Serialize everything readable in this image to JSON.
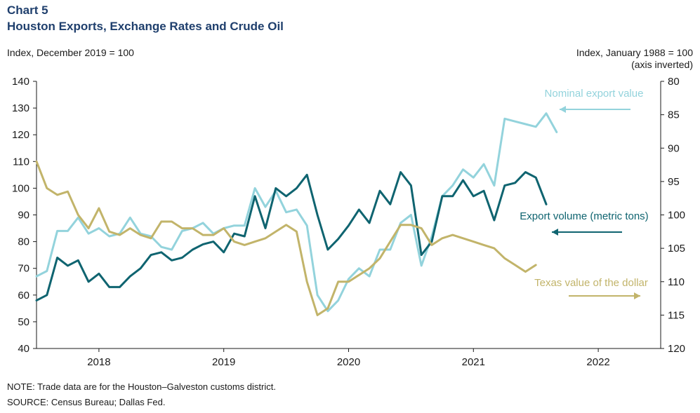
{
  "header": {
    "chart_label": "Chart 5",
    "title": "Houston Exports, Exchange Rates and Crude Oil",
    "left_axis_unit": "Index,  December 2019 = 100",
    "right_axis_unit_line1": "Index,  January 1988 = 100",
    "right_axis_unit_line2": "(axis inverted)"
  },
  "footer": {
    "note": "NOTE: Trade data are for the Houston–Galveston  customs district.",
    "source": "SOURCE: Census Bureau; Dallas Fed."
  },
  "colors": {
    "nominal": "#93d3dc",
    "volume": "#0f6470",
    "dollar": "#c2b46a",
    "axis": "#1a1a1a"
  },
  "chart_data": {
    "type": "line",
    "title": "Houston Exports, Exchange Rates and Crude Oil",
    "x_categories": [
      "2018",
      "2019",
      "2020",
      "2021",
      "2022"
    ],
    "x_range": [
      2017.5,
      2022.5
    ],
    "left_axis": {
      "label": "Index,  December 2019 = 100",
      "ylim": [
        40,
        140
      ],
      "ticks": [
        40,
        50,
        60,
        70,
        80,
        90,
        100,
        110,
        120,
        130,
        140
      ]
    },
    "right_axis": {
      "label": "Index,  January 1988 = 100",
      "inverted": true,
      "ylim": [
        80,
        120
      ],
      "ticks": [
        80,
        85,
        90,
        95,
        100,
        105,
        110,
        115,
        120
      ]
    },
    "series": [
      {
        "name": "Nominal export value",
        "axis": "left",
        "start": "2017-07",
        "values": [
          67,
          69,
          84,
          84,
          89,
          83,
          85,
          82,
          83,
          89,
          83,
          82,
          78,
          77,
          84,
          85,
          87,
          83,
          85,
          86,
          86,
          100,
          93,
          99,
          91,
          92,
          86,
          60,
          54,
          58,
          66,
          70,
          67,
          77,
          77,
          87,
          90,
          71,
          82,
          97,
          101,
          107,
          104,
          109,
          101,
          126,
          125,
          124,
          123,
          128,
          121
        ]
      },
      {
        "name": "Export volume (metric tons)",
        "axis": "left",
        "start": "2017-07",
        "values": [
          58,
          60,
          74,
          71,
          73,
          65,
          68,
          63,
          63,
          67,
          70,
          75,
          76,
          73,
          74,
          77,
          79,
          80,
          76,
          83,
          82,
          97,
          85,
          100,
          97,
          100,
          105,
          90,
          77,
          81,
          86,
          92,
          87,
          99,
          94,
          106,
          101,
          75,
          80,
          97,
          97,
          103,
          97,
          99,
          88,
          101,
          102,
          106,
          104,
          94
        ]
      },
      {
        "name": "Texas value  of the dollar",
        "axis": "right",
        "start": "2017-07",
        "values": [
          92,
          96,
          97,
          96.5,
          100,
          102,
          99,
          102.5,
          103,
          102,
          103,
          103.5,
          101,
          101,
          102,
          102,
          103,
          103,
          102,
          104,
          104.5,
          104,
          103.5,
          102.5,
          101.5,
          102.5,
          110,
          115,
          114,
          110,
          110,
          109,
          108,
          106.5,
          104,
          101.5,
          101.5,
          102,
          104.5,
          103.5,
          103,
          103.5,
          104,
          104.5,
          105,
          106.5,
          107.5,
          108.5,
          107.5
        ]
      }
    ],
    "annotations": [
      {
        "text": "Nominal export value",
        "series": "Nominal export value",
        "arrow": "left"
      },
      {
        "text": "Export volume  (metric tons)",
        "series": "Export volume (metric tons)",
        "arrow": "left"
      },
      {
        "text": "Texas value  of the dollar",
        "series": "Texas value  of the dollar",
        "arrow": "right"
      }
    ],
    "grid": false,
    "legend": "inline annotations"
  }
}
